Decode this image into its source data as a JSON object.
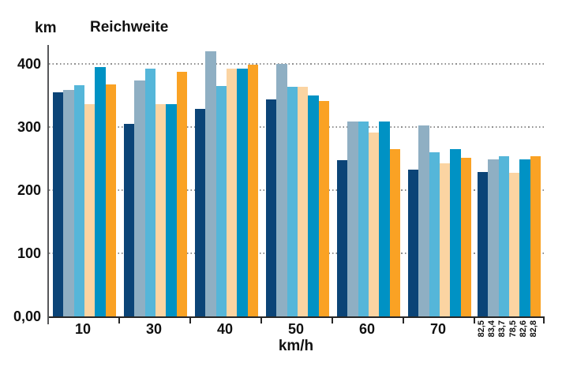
{
  "chart_data": {
    "type": "bar",
    "title": "Reichweite",
    "ylabel": "km",
    "xlabel": "km/h",
    "ylim": [
      0,
      430
    ],
    "grid": "dotted-horizontal",
    "legend": "none",
    "yticks": [
      0,
      100,
      200,
      300,
      400
    ],
    "ytick_labels": [
      "0,00",
      "100",
      "200",
      "300",
      "400"
    ],
    "categories": [
      "10",
      "30",
      "40",
      "50",
      "60",
      "70",
      ""
    ],
    "last_group_bar_labels": [
      "82,5",
      "83,4",
      "83,7",
      "78,5",
      "82,6",
      "82,8"
    ],
    "series": [
      {
        "name": "dark-blue",
        "color": "#0b4477",
        "values": [
          355,
          305,
          329,
          344,
          248,
          233,
          229
        ]
      },
      {
        "name": "gray-blue",
        "color": "#8fafc3",
        "values": [
          359,
          374,
          420,
          400,
          309,
          303,
          249
        ]
      },
      {
        "name": "light-blue",
        "color": "#55b6d9",
        "values": [
          366,
          393,
          365,
          364,
          309,
          260,
          254
        ]
      },
      {
        "name": "sand",
        "color": "#fbd4a2",
        "values": [
          336,
          336,
          393,
          364,
          291,
          243,
          228
        ]
      },
      {
        "name": "blue",
        "color": "#0092c4",
        "values": [
          395,
          336,
          393,
          350,
          309,
          265,
          249
        ]
      },
      {
        "name": "orange",
        "color": "#faa224",
        "values": [
          367,
          388,
          399,
          341,
          265,
          251,
          254
        ]
      }
    ]
  }
}
